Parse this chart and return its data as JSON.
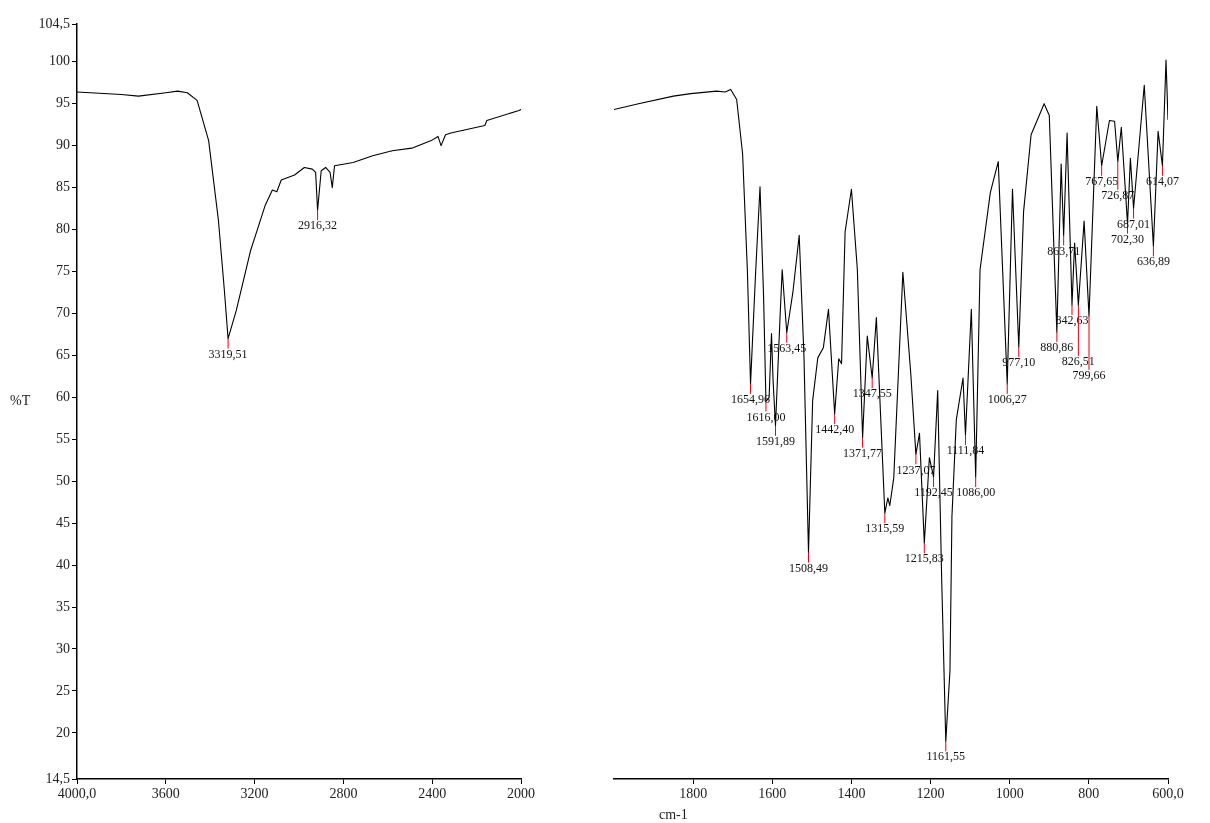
{
  "chart_data": [
    {
      "type": "line",
      "ylabel": "%T",
      "xlim": [
        4000,
        2000
      ],
      "ylim": [
        14.5,
        104.5
      ],
      "xticks": [
        {
          "value": 4000,
          "label": "4000,0"
        },
        3600,
        3200,
        2800,
        2400,
        2000
      ],
      "yticks": [
        {
          "value": 14.5,
          "label": "14,5"
        },
        20,
        25,
        30,
        35,
        40,
        45,
        50,
        55,
        60,
        65,
        70,
        75,
        80,
        85,
        90,
        95,
        100,
        {
          "value": 104.5,
          "label": "104,5"
        }
      ],
      "legend": false,
      "marker": "none",
      "line_style": "solid",
      "series": [
        {
          "color": "#000000",
          "x": [
            4000,
            3800,
            3723,
            3600,
            3547,
            3503,
            3459,
            3407,
            3363,
            3336,
            3319.51,
            3283,
            3218,
            3152,
            3120,
            3100,
            3080,
            3020,
            2976,
            2940,
            2925,
            2916.32,
            2900,
            2880,
            2860,
            2850,
            2840,
            2756,
            2668,
            2580,
            2492,
            2404,
            2374,
            2360,
            2340,
            2316,
            2163,
            2154,
            2009,
            2000
          ],
          "values": [
            96.4,
            96.1,
            95.9,
            96.3,
            96.5,
            96.3,
            95.4,
            90.6,
            81.1,
            72.7,
            67.0,
            70.3,
            77.5,
            82.9,
            84.7,
            84.5,
            85.9,
            86.5,
            87.4,
            87.2,
            86.8,
            82.3,
            87.0,
            87.4,
            86.8,
            85.0,
            87.6,
            88.0,
            88.8,
            89.4,
            89.7,
            90.6,
            91.1,
            90.0,
            91.3,
            91.5,
            92.4,
            93.0,
            94.2,
            94.3
          ]
        }
      ],
      "annotations": [
        {
          "text": "3319,51",
          "x": 3319.51,
          "y": 67.0
        },
        {
          "text": "2916,32",
          "x": 2916.32,
          "y": 82.3
        }
      ]
    },
    {
      "type": "line",
      "xlabel": "cm-1",
      "xlim": [
        2000,
        600
      ],
      "ylim": [
        14.5,
        104.5
      ],
      "tick_labels": "x",
      "xticks": [
        1800,
        1600,
        1400,
        1200,
        1000,
        800,
        {
          "value": 600,
          "label": "600,0"
        }
      ],
      "legend": false,
      "marker": "none",
      "line_style": "solid",
      "series": [
        {
          "color": "#000000",
          "x": [
            2000,
            1938,
            1850,
            1806,
            1741,
            1719,
            1705,
            1690,
            1675,
            1663,
            1654.96,
            1642,
            1631,
            1622,
            1616.0,
            1608,
            1602,
            1598,
            1591.89,
            1580,
            1575,
            1563.45,
            1548,
            1532,
            1520,
            1508.49,
            1498,
            1485,
            1471,
            1458,
            1442.4,
            1432,
            1425,
            1416,
            1400,
            1385,
            1371.77,
            1360,
            1347.55,
            1337,
            1315.59,
            1308,
            1303,
            1293,
            1270,
            1250,
            1237.07,
            1228,
            1215.83,
            1203,
            1192.45,
            1182,
            1172,
            1161.55,
            1151,
            1146,
            1135,
            1118,
            1111.84,
            1097,
            1086.0,
            1075,
            1049,
            1029,
            1006.27,
            993,
            977.1,
            965,
            946,
            913,
            900,
            880.86,
            870,
            863.71,
            855,
            842.63,
            836,
            826.51,
            812,
            799.66,
            780,
            767.65,
            748,
            735,
            726.87,
            718,
            702.3,
            695,
            687.01,
            660,
            636.89,
            625,
            614.07,
            605,
            600
          ],
          "values": [
            94.3,
            95.0,
            95.9,
            96.2,
            96.5,
            96.4,
            96.7,
            95.5,
            89.0,
            75.2,
            61.6,
            75.0,
            85.1,
            72.0,
            59.5,
            60.0,
            67.6,
            62.0,
            56.6,
            70.0,
            75.2,
            67.7,
            72.5,
            79.3,
            65.0,
            41.5,
            59.6,
            64.7,
            65.9,
            70.5,
            58.0,
            64.6,
            64.0,
            79.7,
            84.8,
            75.2,
            55.2,
            67.3,
            62.3,
            69.5,
            46.2,
            48.0,
            47.1,
            50.4,
            74.9,
            62.8,
            53.2,
            55.7,
            42.6,
            52.8,
            50.5,
            60.8,
            38.5,
            19.0,
            27.4,
            45.8,
            57.3,
            62.3,
            55.5,
            70.5,
            50.5,
            75.2,
            84.4,
            88.1,
            61.6,
            84.8,
            66.0,
            82.1,
            91.3,
            95.0,
            93.6,
            67.8,
            87.8,
            79.3,
            91.5,
            71.0,
            78.4,
            71.0,
            81.0,
            69.7,
            94.7,
            87.6,
            93.0,
            92.9,
            88.1,
            92.2,
            80.7,
            88.5,
            82.5,
            97.2,
            78.0,
            91.7,
            87.6,
            100.2,
            93.1
          ]
        }
      ],
      "annotations": [
        {
          "text": "1654,96",
          "x": 1654.96,
          "y": 61.6
        },
        {
          "text": "1616,00",
          "x": 1616.0,
          "y": 59.5
        },
        {
          "text": "1591,89",
          "x": 1591.89,
          "y": 56.6
        },
        {
          "text": "1563,45",
          "x": 1563.45,
          "y": 67.7
        },
        {
          "text": "1508,49",
          "x": 1508.49,
          "y": 41.5
        },
        {
          "text": "1442,40",
          "x": 1442.4,
          "y": 58.0
        },
        {
          "text": "1371,77",
          "x": 1371.77,
          "y": 55.2
        },
        {
          "text": "1347,55",
          "x": 1347.55,
          "y": 62.3
        },
        {
          "text": "1315,59",
          "x": 1315.59,
          "y": 46.2
        },
        {
          "text": "1237,07",
          "x": 1237.07,
          "y": 53.2
        },
        {
          "text": "1215,83",
          "x": 1215.83,
          "y": 42.6
        },
        {
          "text": "1192,45",
          "x": 1192.45,
          "y": 50.5
        },
        {
          "text": "1161,55",
          "x": 1161.55,
          "y": 19.0
        },
        {
          "text": "1111,84",
          "x": 1111.84,
          "y": 55.5
        },
        {
          "text": "1086,00",
          "x": 1086.0,
          "y": 50.5
        },
        {
          "text": "1006,27",
          "x": 1006.27,
          "y": 61.6
        },
        {
          "text": "977,10",
          "x": 977.1,
          "y": 66.0
        },
        {
          "text": "880,86",
          "x": 880.86,
          "y": 67.8
        },
        {
          "text": "863,71",
          "x": 863.71,
          "y": 79.3
        },
        {
          "text": "842,63",
          "x": 842.63,
          "y": 71.0
        },
        {
          "text": "826,51",
          "x": 826.51,
          "y": 71.0
        },
        {
          "text": "799,66",
          "x": 799.66,
          "y": 69.7
        },
        {
          "text": "767,65",
          "x": 767.65,
          "y": 87.6
        },
        {
          "text": "726,87",
          "x": 726.87,
          "y": 88.1
        },
        {
          "text": "702,30",
          "x": 702.3,
          "y": 80.7
        },
        {
          "text": "687,01",
          "x": 687.01,
          "y": 82.5
        },
        {
          "text": "636,89",
          "x": 636.89,
          "y": 78.0
        },
        {
          "text": "614,07",
          "x": 614.07,
          "y": 87.6
        }
      ]
    }
  ]
}
